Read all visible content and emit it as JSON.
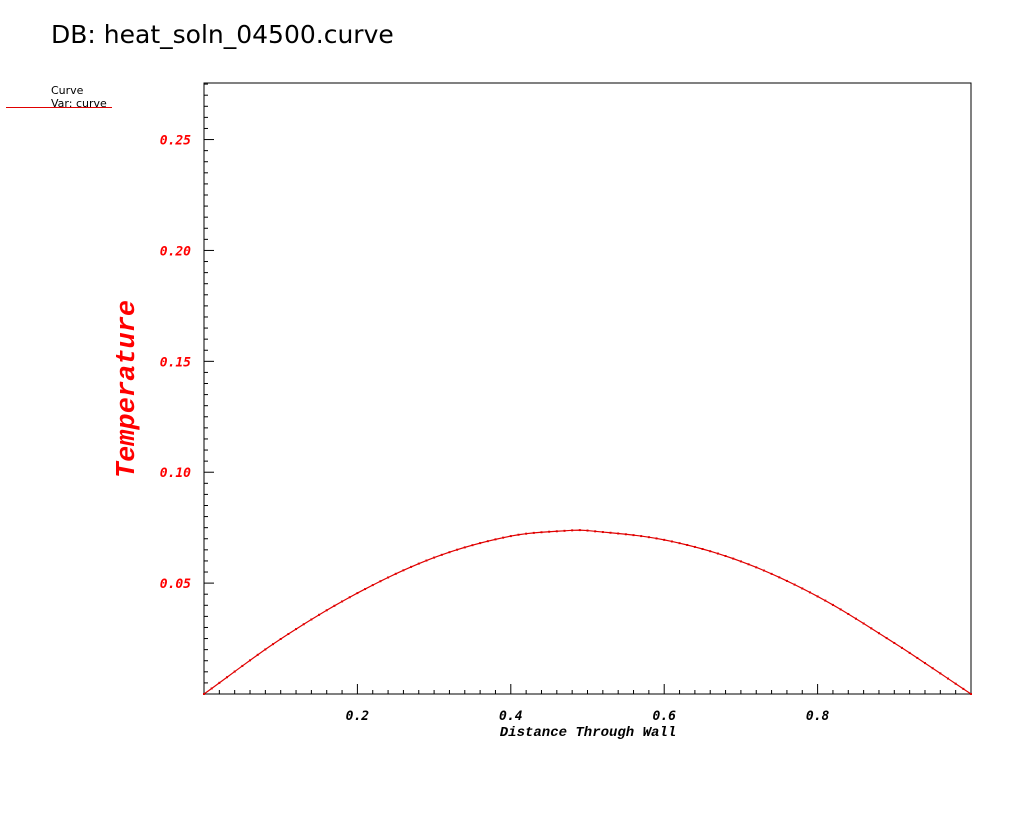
{
  "header": {
    "title": "DB: heat_soln_04500.curve"
  },
  "legend": {
    "line1": "Curve",
    "line2": "Var: curve"
  },
  "colors": {
    "curve": "#e00000",
    "ylabels": "#ff0000",
    "axis": "#000000"
  },
  "chart_data": {
    "type": "line",
    "xlabel": "Distance Through Wall",
    "ylabel": "Temperature",
    "xlim": [
      0,
      1
    ],
    "ylim": [
      0,
      0.2755
    ],
    "xticks": [
      "0.2",
      "0.4",
      "0.6",
      "0.8"
    ],
    "yticks": [
      "0.05",
      "0.10",
      "0.15",
      "0.20",
      "0.25"
    ],
    "series": [
      {
        "name": "curve",
        "x": [
          0,
          0.1,
          0.2,
          0.3,
          0.4,
          0.48,
          0.5,
          0.6,
          0.7,
          0.8,
          0.9,
          1.0
        ],
        "y": [
          0,
          0.0248,
          0.0455,
          0.0615,
          0.0712,
          0.0738,
          0.0737,
          0.0695,
          0.0598,
          0.044,
          0.023,
          0
        ]
      }
    ]
  }
}
